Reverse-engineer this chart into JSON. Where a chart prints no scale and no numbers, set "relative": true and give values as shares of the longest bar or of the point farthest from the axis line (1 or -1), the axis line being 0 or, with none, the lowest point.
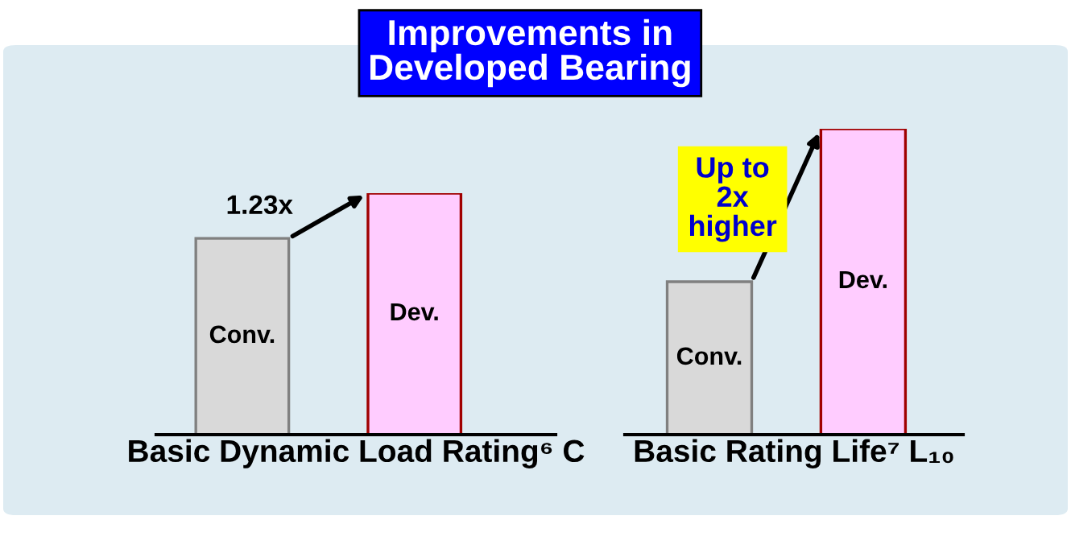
{
  "chart_data": [
    {
      "type": "bar",
      "title": "Improvements in\nDeveloped Bearing",
      "relative": true,
      "categories": [
        "Conv.",
        "Dev."
      ],
      "values": [
        0.813,
        1
      ],
      "colors": [
        "#d9d9d9",
        "#ffccff"
      ],
      "xlabel": "Basic Dynamic Load Rating⁶ C",
      "annotations": [
        "1.23x"
      ]
    },
    {
      "type": "bar",
      "relative": true,
      "categories": [
        "Conv.",
        "Dev."
      ],
      "values": [
        0.5,
        1
      ],
      "colors": [
        "#d9d9d9",
        "#ffccff"
      ],
      "xlabel": "Basic Rating Life⁷ L₁₀",
      "annotations": [
        "Up to\n2x\nhigher"
      ]
    }
  ]
}
